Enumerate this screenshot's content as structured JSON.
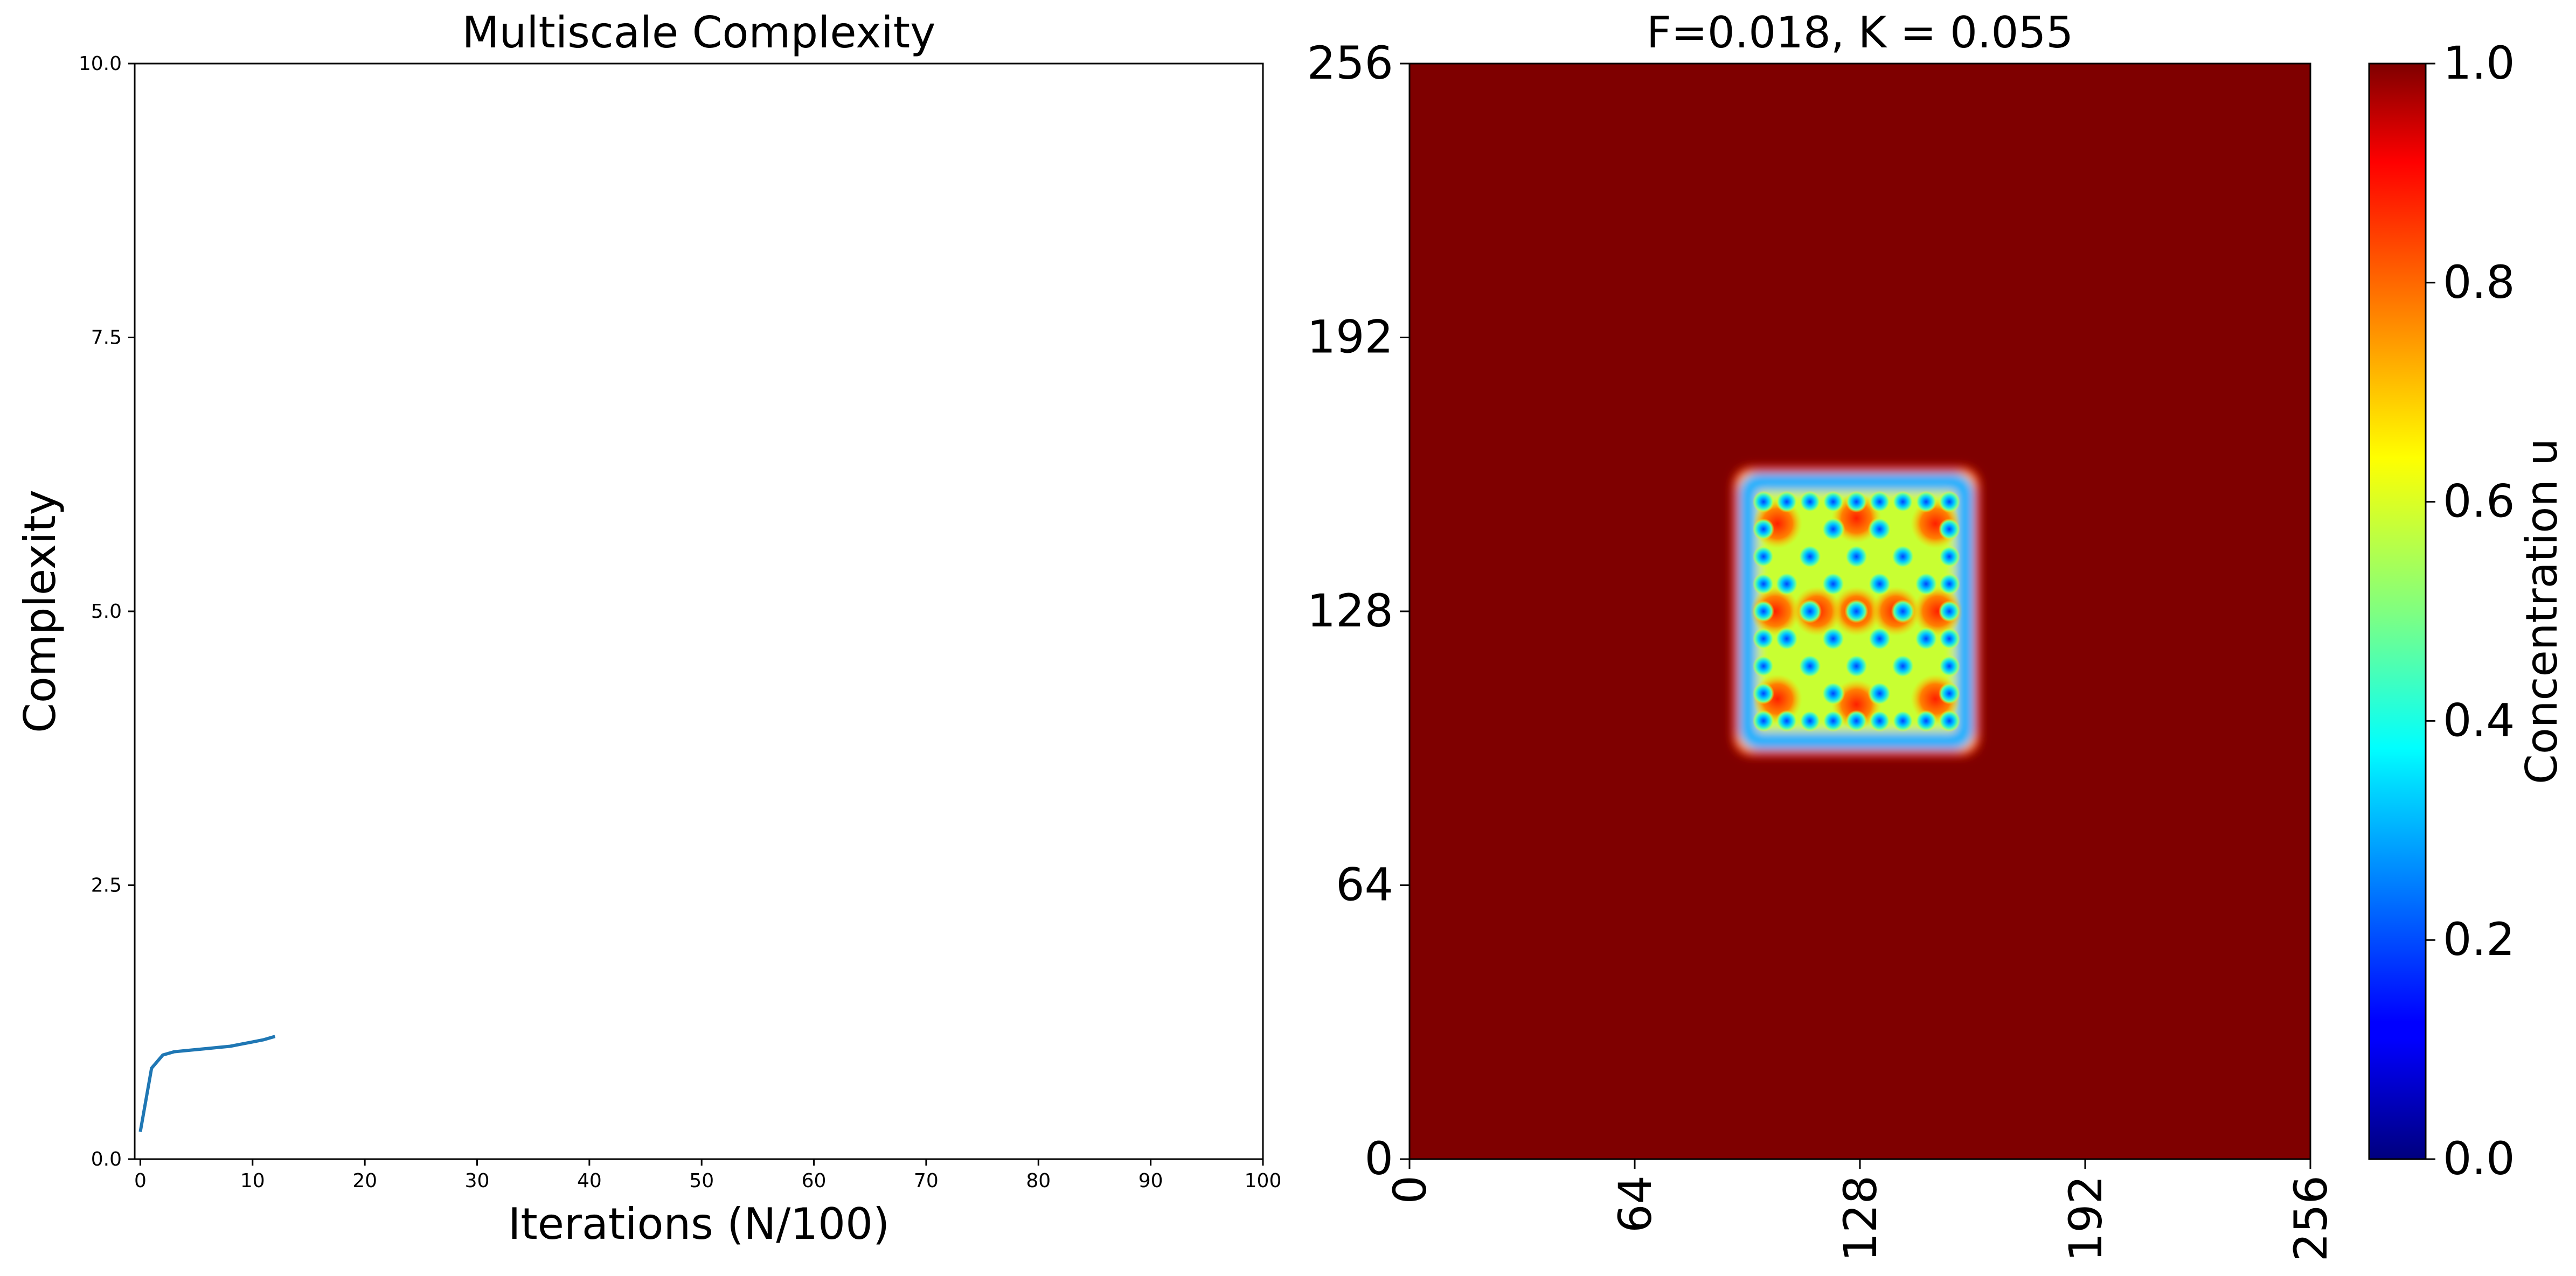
{
  "chart_data": [
    {
      "type": "line",
      "title": "Multiscale Complexity",
      "xlabel": "Iterations (N/100)",
      "ylabel": "Complexity",
      "xlim": [
        -0.5,
        100
      ],
      "ylim": [
        0,
        10
      ],
      "xticks": [
        0,
        10,
        20,
        30,
        40,
        50,
        60,
        70,
        80,
        90,
        100
      ],
      "xtick_labels": [
        "0",
        "10",
        "20",
        "30",
        "40",
        "50",
        "60",
        "70",
        "80",
        "90",
        "100"
      ],
      "yticks": [
        0,
        2.5,
        5,
        7.5,
        10
      ],
      "ytick_labels": [
        "0.0",
        "2.5",
        "5.0",
        "7.5",
        "10.0"
      ],
      "grid": false,
      "line_color": "#1f77b4",
      "series": [
        {
          "x": [
            0,
            1,
            2,
            3,
            4,
            5,
            6,
            7,
            8,
            9,
            10,
            11,
            12
          ],
          "y": [
            0.25,
            0.83,
            0.95,
            0.98,
            0.99,
            1.0,
            1.01,
            1.02,
            1.03,
            1.05,
            1.07,
            1.09,
            1.12
          ]
        }
      ]
    },
    {
      "type": "heatmap",
      "title": "F=0.018, K = 0.055",
      "xlim": [
        0,
        256
      ],
      "ylim": [
        0,
        256
      ],
      "xticks": [
        0,
        64,
        128,
        192,
        256
      ],
      "xtick_labels": [
        "0",
        "64",
        "128",
        "192",
        "256"
      ],
      "yticks": [
        0,
        64,
        128,
        192,
        256
      ],
      "ytick_labels": [
        "0",
        "64",
        "128",
        "192",
        "256"
      ],
      "colormap": "jet",
      "background_value": 1.0,
      "pattern": {
        "x_range": [
          94,
          160
        ],
        "y_range": [
          96,
          160
        ],
        "description_values": "square Gray-Scott spot pattern; rim and spots near 0.3, interior between 0.6 and 0.9"
      },
      "colorbar": {
        "label": "Concentration u",
        "range": [
          0,
          1
        ],
        "ticks": [
          0,
          0.2,
          0.4,
          0.6,
          0.8,
          1.0
        ],
        "tick_labels": [
          "0.0",
          "0.2",
          "0.4",
          "0.6",
          "0.8",
          "1.0"
        ]
      }
    }
  ]
}
